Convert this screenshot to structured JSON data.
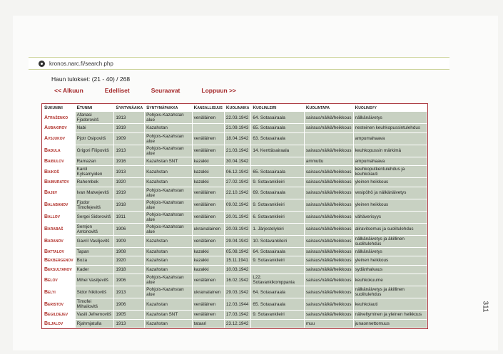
{
  "browser": {
    "url": "kronos.narc.fi/search.php"
  },
  "results": {
    "count_label": "Haun tulokset: (21 - 40) / 268"
  },
  "nav": {
    "first": "<< Alkuun",
    "prev": "Edelliset",
    "next": "Seuraavat",
    "last": "Loppuun >>"
  },
  "table": {
    "headers": [
      "Sukunimi",
      "Etunimi",
      "Syntymäaika",
      "Syntymäpaikka",
      "Kansallisuus",
      "Kuolinaika",
      "Kuolinleiri",
      "Kuolintapa",
      "Kuolinsyy"
    ],
    "rows": [
      [
        "Atrašenko",
        "Afanasi Fjodorovitš",
        "1913",
        "Pohjois-Kazahstan alue",
        "venäläinen",
        "22.03.1942",
        "64. Sotasairaala",
        "sairaus/nälkä/heikkous",
        "nälkänäivetys"
      ],
      [
        "Aubakirov",
        "Nabi",
        "1919",
        "Kazahstan",
        "",
        "21.09.1943",
        "65. Sotasairaala",
        "sairaus/nälkä/heikkous",
        "nesteinen keuhkopussintulehdus"
      ],
      [
        "Avsjukov",
        "Pjotr Osipovitš",
        "1909",
        "Pohjois-Kazahstan alue",
        "venäläinen",
        "18.04.1942",
        "63. Sotasairaala",
        "",
        "ampumahaava"
      ],
      [
        "Badula",
        "Grigori Filipovitš",
        "1913",
        "Pohjois-Kazahstan alue",
        "venäläinen",
        "21.03.1942",
        "14. Kenttäsairaala",
        "sairaus/nälkä/heikkous",
        "keuhkopussin märkimä"
      ],
      [
        "Baibulov",
        "Ramazan",
        "1916",
        "Kazahstan SNT",
        "kazakki",
        "30.04.1942",
        "",
        "ammuttu",
        "ampumahaava"
      ],
      [
        "Baikoš",
        "Karol Kylsamyiden",
        "1913",
        "Kazahstan",
        "kazakki",
        "06.12.1942",
        "65. Sotasairaala",
        "sairaus/nälkä/heikkous",
        "keuhkoputkentulehdus ja keuhkolauti"
      ],
      [
        "Baimuratov",
        "Rahembek",
        "1920",
        "Kazahstan",
        "kazakki",
        "27.02.1942",
        "9. Sotavankileiri",
        "sairaus/nälkä/heikkous",
        "yleinen heikkous"
      ],
      [
        "Bajev",
        "Ivan Matvejevitš",
        "1919",
        "Pohjois-Kazahstan alue",
        "venäläinen",
        "22.10.1942",
        "69. Sotasairaala",
        "sairaus/nälkä/heikkous",
        "vesipöhö ja nälkänäivetys"
      ],
      [
        "Balabanov",
        "Fjodor Timofejevitš",
        "1918",
        "Pohjois-Kazahstan alue",
        "venäläinen",
        "09.02.1942",
        "9. Sotavankileiri",
        "sairaus/nälkä/heikkous",
        "yleinen heikkous"
      ],
      [
        "Ballov",
        "Sergei Sidorovitš",
        "1911",
        "Pohjois-Kazahstan alue",
        "venäläinen",
        "20.01.1942",
        "6. Sotavankileiri",
        "sairaus/nälkä/heikkous",
        "vähäverisyys"
      ],
      [
        "Barabaš",
        "Semjon Antonovitš",
        "1906",
        "Pohjois-Kazahstan alue",
        "ukrainalainen",
        "20.03.1942",
        "1. Järjestelyleiri",
        "sairaus/nälkä/heikkous",
        "aliravitsemus ja suolitulehdus"
      ],
      [
        "Baranov",
        "Gavril Vasiljevitš",
        "1909",
        "Kazahstan",
        "venäläinen",
        "29.04.1942",
        "10. Sotavankileiri",
        "sairaus/nälkä/heikkous",
        "nälkänäivetys ja äkillinen suolitulehdus"
      ],
      [
        "Battalov",
        "Tapan",
        "1908",
        "Kazahstan",
        "kazakki",
        "05.08.1942",
        "64. Sotasairaala",
        "sairaus/nälkä/heikkous",
        "nälkänäivetys"
      ],
      [
        "Bekbergenov",
        "Boza",
        "1920",
        "Kazahstan",
        "kazakki",
        "15.11.1941",
        "9. Sotavankileiri",
        "sairaus/nälkä/heikkous",
        "yleinen heikkous"
      ],
      [
        "Beksultanov",
        "Kader",
        "1918",
        "Kazahstan",
        "kazakki",
        "10.03.1942",
        "",
        "sairaus/nälkä/heikkous",
        "sydänhalvaus"
      ],
      [
        "Belov",
        "Mihei Vasiljevitš",
        "1906",
        "Pohjois-Kazahstan alue",
        "venäläinen",
        "16.02.1942",
        "L22. Sotavankikomppania",
        "sairaus/nälkä/heikkous",
        "keuhkokuume"
      ],
      [
        "Belyi",
        "Sidor Nikitovitš",
        "1913",
        "Pohjois-Kazahstan alue",
        "ukrainalainen",
        "29.03.1942",
        "64. Sotasairaala",
        "sairaus/nälkä/heikkous",
        "nälkänäivetys ja äkillinen suolitulehdus"
      ],
      [
        "Beristov",
        "Timofei Mihailovitš",
        "1906",
        "Kazahstan",
        "venäläinen",
        "12.03.1944",
        "65. Sotasairaala",
        "sairaus/nälkä/heikkous",
        "keuhkolauti"
      ],
      [
        "Begildejev",
        "Vasili Jefremovitš",
        "1905",
        "Kazahstan SNT",
        "venäläinen",
        "17.03.1942",
        "9. Sotavankileiri",
        "sairaus/nälkä/heikkous",
        "näiveltyminen ja yleinen heikkous"
      ],
      [
        "Biljalov",
        "Rjahmjatulla",
        "1913",
        "Kazahstan",
        "tataari",
        "23.12.1942",
        "",
        "muu",
        "junaonnettomuus"
      ]
    ]
  },
  "page_number": "311",
  "colors": {
    "name_red": "#b0302a",
    "cell_bg": "#c8d1c2",
    "border": "#a8323a"
  }
}
